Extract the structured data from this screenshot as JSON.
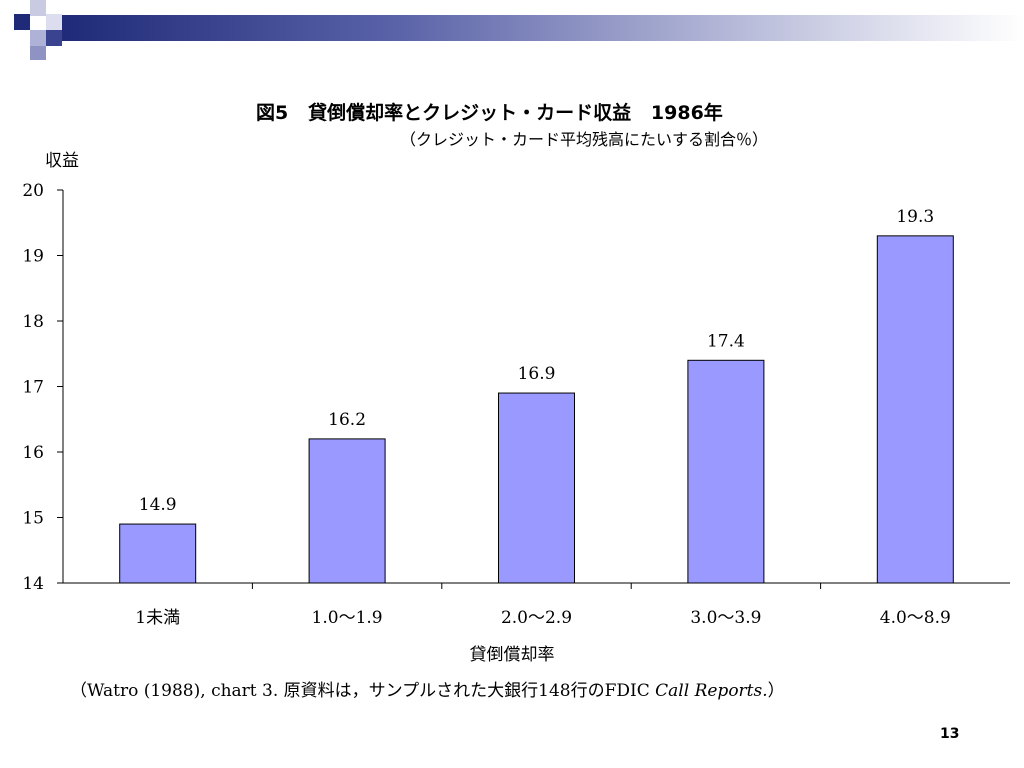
{
  "slide": {
    "page_number": "13",
    "source_note_prefix": "（Watro (1988), chart 3. 原資料は，サンプルされた大銀行148行のFDIC ",
    "source_note_italic": "Call Reports.",
    "source_note_suffix": "）"
  },
  "colors": {
    "bar_fill": "#9999ff",
    "bar_stroke": "#000000",
    "header_dark": "#1f2a78"
  },
  "chart_data": {
    "type": "bar",
    "title": "図5   貸倒償却率とクレジット・カード収益   1986年",
    "subtitle": "（クレジット・カード平均残高にたいする割合％）",
    "ylabel": "収益",
    "xlabel": "貸倒償却率",
    "categories": [
      "1未満",
      "1.0～1.9",
      "2.0～2.9",
      "3.0～3.9",
      "4.0～8.9"
    ],
    "values": [
      14.9,
      16.2,
      16.9,
      17.4,
      19.3
    ],
    "value_labels": [
      "14.9",
      "16.2",
      "16.9",
      "17.4",
      "19.3"
    ],
    "ylim": [
      14,
      20
    ],
    "yticks": [
      "14",
      "15",
      "16",
      "17",
      "18",
      "19",
      "20"
    ],
    "grid": false,
    "legend": "none"
  }
}
